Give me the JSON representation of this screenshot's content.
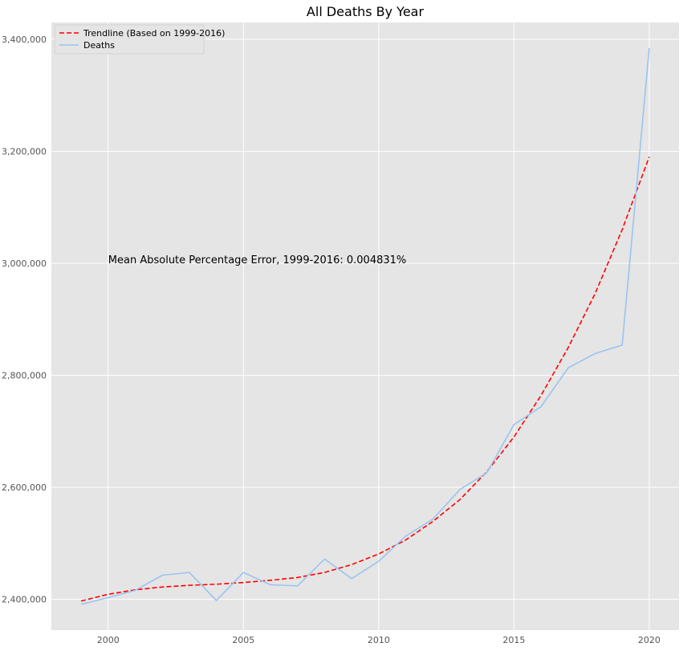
{
  "chart_data": {
    "type": "line",
    "title": "All Deaths By Year",
    "xlabel": "",
    "ylabel": "",
    "x": [
      1999,
      2000,
      2001,
      2002,
      2003,
      2004,
      2005,
      2006,
      2007,
      2008,
      2009,
      2010,
      2011,
      2012,
      2013,
      2014,
      2015,
      2016,
      2017,
      2018,
      2019,
      2020
    ],
    "xlim": [
      1997.9,
      2021.1
    ],
    "ylim": [
      2345000,
      3430000
    ],
    "x_ticks": [
      2000,
      2005,
      2010,
      2015,
      2020
    ],
    "x_tick_labels": [
      "2000",
      "2005",
      "2010",
      "2015",
      "2020"
    ],
    "y_ticks": [
      2400000,
      2600000,
      2800000,
      3000000,
      3200000,
      3400000
    ],
    "y_tick_labels": [
      "2,400,000",
      "2,600,000",
      "2,800,000",
      "3,000,000",
      "3,200,000",
      "3,400,000"
    ],
    "grid": true,
    "legend_position": "top-left",
    "annotation": {
      "text": "Mean Absolute Percentage Error, 1999-2016: 0.004831%",
      "x": 2000,
      "y": 3000000
    },
    "series": [
      {
        "name": "Trendline (Based on 1999-2016)",
        "color": "#ff0000",
        "style": "dashed",
        "values": [
          2397000,
          2409000,
          2417000,
          2422000,
          2425000,
          2427000,
          2430000,
          2434000,
          2439000,
          2448000,
          2462000,
          2481000,
          2506000,
          2539000,
          2578000,
          2628000,
          2690000,
          2764000,
          2849000,
          2946000,
          3060000,
          3190000
        ]
      },
      {
        "name": "Deaths",
        "color": "#99c4f0",
        "style": "solid",
        "values": [
          2391000,
          2403000,
          2416000,
          2443000,
          2448000,
          2398000,
          2448000,
          2426000,
          2424000,
          2472000,
          2437000,
          2468000,
          2513000,
          2543000,
          2596000,
          2626000,
          2712000,
          2744000,
          2813000,
          2839000,
          2854000,
          3384000
        ]
      }
    ]
  },
  "colors": {
    "plot_background": "#e5e5e5",
    "grid": "#ffffff",
    "legend_frame": "#cccccc"
  }
}
